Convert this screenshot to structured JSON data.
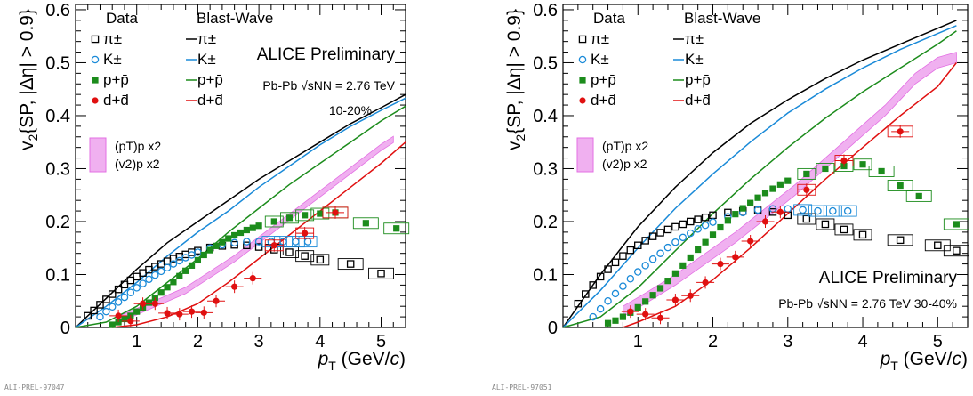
{
  "chart_data": [
    {
      "type": "scatter",
      "title": "",
      "xlabel": "p_T (GeV/c)",
      "ylabel": "v2{SP, |Δη| > 0.9}",
      "xlim": [
        0,
        5.4
      ],
      "ylim": [
        0,
        0.61
      ],
      "xticks": [
        1,
        2,
        3,
        4,
        5
      ],
      "yticks": [
        0,
        0.1,
        0.2,
        0.3,
        0.4,
        0.5,
        0.6
      ],
      "ytick_labels": [
        "0",
        "0.1",
        "0.2",
        "0.3",
        "0.4",
        "0.5",
        "0.6"
      ],
      "grid": false,
      "legend_header_data": "Data",
      "legend_header_model": "Blast-Wave",
      "annotations": [
        "ALICE Preliminary",
        "Pb-Pb √sNN = 2.76 TeV",
        "10-20%"
      ],
      "band_labels": [
        "(pT)p x2",
        "(v2)p x2"
      ],
      "footer": "ALI-PREL-97047",
      "band": {
        "name": "(pT)p x2, (v2)p x2",
        "color": "#e36fe3",
        "x": [
          0.7,
          1.0,
          1.4,
          1.8,
          2.2,
          2.6,
          3.0,
          3.4,
          3.8,
          4.2,
          4.6,
          5.0,
          5.2
        ],
        "y": [
          0.015,
          0.03,
          0.05,
          0.07,
          0.1,
          0.13,
          0.165,
          0.2,
          0.235,
          0.27,
          0.305,
          0.34,
          0.355
        ],
        "halfwidth": 0.006
      },
      "series": [
        {
          "name": "π±",
          "marker": "open-square",
          "color": "#000000",
          "x": [
            0.2,
            0.3,
            0.4,
            0.5,
            0.6,
            0.7,
            0.8,
            0.9,
            1.0,
            1.1,
            1.2,
            1.3,
            1.4,
            1.5,
            1.6,
            1.7,
            1.8,
            1.9,
            2.0,
            2.2,
            2.4,
            2.6,
            2.8,
            3.0,
            3.25,
            3.5,
            3.75,
            4.0,
            4.5,
            5.0
          ],
          "y": [
            0.022,
            0.032,
            0.043,
            0.053,
            0.063,
            0.072,
            0.081,
            0.089,
            0.096,
            0.103,
            0.109,
            0.115,
            0.12,
            0.125,
            0.13,
            0.134,
            0.138,
            0.142,
            0.145,
            0.151,
            0.154,
            0.156,
            0.155,
            0.152,
            0.147,
            0.142,
            0.135,
            0.128,
            0.12,
            0.102
          ]
        },
        {
          "name": "K±",
          "marker": "open-circle",
          "color": "#1a8ad8",
          "x": [
            0.4,
            0.5,
            0.6,
            0.7,
            0.8,
            0.9,
            1.0,
            1.1,
            1.2,
            1.3,
            1.4,
            1.5,
            1.6,
            1.7,
            1.8,
            1.9,
            2.0,
            2.2,
            2.4,
            2.6,
            2.8,
            3.0,
            3.2,
            3.4,
            3.6,
            3.8
          ],
          "y": [
            0.02,
            0.03,
            0.039,
            0.048,
            0.057,
            0.066,
            0.075,
            0.083,
            0.091,
            0.099,
            0.106,
            0.113,
            0.12,
            0.126,
            0.132,
            0.137,
            0.142,
            0.15,
            0.156,
            0.16,
            0.162,
            0.162,
            0.162,
            0.162,
            0.162,
            0.162
          ]
        },
        {
          "name": "p+p̄",
          "marker": "filled-square",
          "color": "#1c8c1c",
          "x": [
            0.6,
            0.7,
            0.8,
            0.9,
            1.0,
            1.1,
            1.2,
            1.3,
            1.4,
            1.5,
            1.6,
            1.7,
            1.8,
            1.9,
            2.0,
            2.1,
            2.2,
            2.3,
            2.4,
            2.5,
            2.6,
            2.7,
            2.8,
            2.9,
            3.0,
            3.25,
            3.5,
            3.75,
            4.0,
            4.25,
            4.75,
            5.25
          ],
          "y": [
            0.005,
            0.01,
            0.016,
            0.022,
            0.03,
            0.038,
            0.047,
            0.056,
            0.066,
            0.076,
            0.086,
            0.097,
            0.107,
            0.117,
            0.127,
            0.137,
            0.146,
            0.154,
            0.161,
            0.168,
            0.174,
            0.179,
            0.184,
            0.188,
            0.192,
            0.2,
            0.207,
            0.212,
            0.215,
            0.217,
            0.197,
            0.187
          ]
        },
        {
          "name": "d+d̄",
          "marker": "filled-circle",
          "color": "#e01010",
          "x": [
            0.7,
            0.9,
            1.1,
            1.3,
            1.5,
            1.7,
            1.9,
            2.1,
            2.3,
            2.6,
            2.9,
            3.25,
            3.75,
            4.25
          ],
          "y": [
            0.022,
            0.012,
            0.045,
            0.045,
            0.027,
            0.025,
            0.03,
            0.028,
            0.05,
            0.077,
            0.093,
            0.155,
            0.178,
            0.217
          ]
        }
      ],
      "model_curves": [
        {
          "name": "π±",
          "color": "#000000",
          "x": [
            0,
            0.5,
            1.0,
            1.5,
            2.0,
            2.5,
            3.0,
            3.5,
            4.0,
            4.5,
            5.0,
            5.4
          ],
          "y": [
            0.0,
            0.055,
            0.11,
            0.16,
            0.2,
            0.24,
            0.28,
            0.315,
            0.35,
            0.385,
            0.415,
            0.44
          ]
        },
        {
          "name": "K±",
          "color": "#1a8ad8",
          "x": [
            0,
            0.5,
            1.0,
            1.5,
            2.0,
            2.5,
            3.0,
            3.5,
            4.0,
            4.5,
            5.0,
            5.4
          ],
          "y": [
            0.0,
            0.04,
            0.085,
            0.135,
            0.18,
            0.22,
            0.265,
            0.305,
            0.345,
            0.38,
            0.41,
            0.433
          ]
        },
        {
          "name": "p+p̄",
          "color": "#1c8c1c",
          "x": [
            0,
            0.5,
            1.0,
            1.5,
            2.0,
            2.5,
            3.0,
            3.5,
            4.0,
            4.5,
            5.0,
            5.4
          ],
          "y": [
            0.0,
            0.01,
            0.04,
            0.085,
            0.13,
            0.18,
            0.225,
            0.27,
            0.31,
            0.35,
            0.39,
            0.418
          ]
        },
        {
          "name": "d+d̄",
          "color": "#e01010",
          "x": [
            0.6,
            1.0,
            1.5,
            2.0,
            2.5,
            3.0,
            3.5,
            4.0,
            4.5,
            5.0,
            5.4
          ],
          "y": [
            0.0,
            0.005,
            0.02,
            0.045,
            0.085,
            0.13,
            0.175,
            0.22,
            0.265,
            0.31,
            0.35
          ]
        }
      ]
    },
    {
      "type": "scatter",
      "title": "",
      "xlabel": "p_T (GeV/c)",
      "ylabel": "v2{SP, |Δη| > 0.9}",
      "xlim": [
        0,
        5.4
      ],
      "ylim": [
        0,
        0.61
      ],
      "xticks": [
        1,
        2,
        3,
        4,
        5
      ],
      "yticks": [
        0,
        0.1,
        0.2,
        0.3,
        0.4,
        0.5,
        0.6
      ],
      "ytick_labels": [
        "0",
        "0.1",
        "0.2",
        "0.3",
        "0.4",
        "0.5",
        "0.6"
      ],
      "grid": false,
      "legend_header_data": "Data",
      "legend_header_model": "Blast-Wave",
      "annotations": [
        "ALICE Preliminary",
        "Pb-Pb √sNN = 2.76 TeV 30-40%"
      ],
      "band_labels": [
        "(pT)p x2",
        "(v2)p x2"
      ],
      "footer": "ALI-PREL-97051",
      "band": {
        "name": "(pT)p x2, (v2)p x2",
        "color": "#e36fe3",
        "x": [
          0.8,
          1.1,
          1.5,
          1.9,
          2.3,
          2.7,
          3.1,
          3.5,
          3.9,
          4.3,
          4.7,
          5.0,
          5.25
        ],
        "y": [
          0.03,
          0.055,
          0.09,
          0.13,
          0.17,
          0.215,
          0.26,
          0.31,
          0.36,
          0.41,
          0.47,
          0.5,
          0.51
        ],
        "halfwidth": 0.01
      },
      "series": [
        {
          "name": "π±",
          "marker": "open-square",
          "color": "#000000",
          "x": [
            0.2,
            0.3,
            0.4,
            0.5,
            0.6,
            0.7,
            0.8,
            0.9,
            1.0,
            1.1,
            1.2,
            1.3,
            1.4,
            1.5,
            1.6,
            1.7,
            1.8,
            1.9,
            2.0,
            2.2,
            2.4,
            2.6,
            2.8,
            3.0,
            3.25,
            3.5,
            3.75,
            4.0,
            4.5,
            5.0,
            5.25
          ],
          "y": [
            0.045,
            0.063,
            0.08,
            0.096,
            0.11,
            0.123,
            0.135,
            0.146,
            0.155,
            0.164,
            0.172,
            0.179,
            0.185,
            0.19,
            0.195,
            0.2,
            0.204,
            0.208,
            0.212,
            0.217,
            0.22,
            0.221,
            0.218,
            0.212,
            0.205,
            0.195,
            0.185,
            0.175,
            0.165,
            0.155,
            0.145
          ]
        },
        {
          "name": "K±",
          "marker": "open-circle",
          "color": "#1a8ad8",
          "x": [
            0.4,
            0.5,
            0.6,
            0.7,
            0.8,
            0.9,
            1.0,
            1.1,
            1.2,
            1.3,
            1.4,
            1.5,
            1.6,
            1.7,
            1.8,
            1.9,
            2.0,
            2.2,
            2.4,
            2.6,
            2.8,
            3.0,
            3.2,
            3.4,
            3.6,
            3.8
          ],
          "y": [
            0.02,
            0.035,
            0.05,
            0.064,
            0.078,
            0.092,
            0.105,
            0.117,
            0.129,
            0.14,
            0.151,
            0.161,
            0.17,
            0.178,
            0.186,
            0.193,
            0.199,
            0.209,
            0.217,
            0.222,
            0.224,
            0.224,
            0.222,
            0.22,
            0.22,
            0.22
          ]
        },
        {
          "name": "p+p̄",
          "marker": "filled-square",
          "color": "#1c8c1c",
          "x": [
            0.6,
            0.7,
            0.8,
            0.9,
            1.0,
            1.1,
            1.2,
            1.3,
            1.4,
            1.5,
            1.6,
            1.7,
            1.8,
            1.9,
            2.0,
            2.1,
            2.2,
            2.3,
            2.4,
            2.5,
            2.6,
            2.7,
            2.8,
            2.9,
            3.0,
            3.25,
            3.5,
            3.75,
            4.0,
            4.25,
            4.5,
            4.75,
            5.25
          ],
          "y": [
            0.008,
            0.013,
            0.02,
            0.028,
            0.038,
            0.049,
            0.061,
            0.074,
            0.088,
            0.102,
            0.117,
            0.132,
            0.147,
            0.161,
            0.175,
            0.189,
            0.202,
            0.214,
            0.225,
            0.235,
            0.245,
            0.254,
            0.262,
            0.27,
            0.277,
            0.29,
            0.3,
            0.305,
            0.308,
            0.295,
            0.268,
            0.248,
            0.195
          ]
        },
        {
          "name": "d+d̄",
          "marker": "filled-circle",
          "color": "#e01010",
          "x": [
            0.9,
            1.1,
            1.3,
            1.5,
            1.7,
            1.9,
            2.1,
            2.3,
            2.5,
            2.7,
            2.9,
            3.25,
            3.75,
            4.5
          ],
          "y": [
            0.03,
            0.025,
            0.018,
            0.052,
            0.06,
            0.085,
            0.12,
            0.133,
            0.163,
            0.2,
            0.218,
            0.26,
            0.315,
            0.37
          ]
        }
      ],
      "model_curves": [
        {
          "name": "π±",
          "color": "#000000",
          "x": [
            0,
            0.5,
            1.0,
            1.5,
            2.0,
            2.5,
            3.0,
            3.5,
            4.0,
            4.5,
            5.0,
            5.25
          ],
          "y": [
            0.0,
            0.1,
            0.19,
            0.265,
            0.33,
            0.385,
            0.43,
            0.47,
            0.505,
            0.535,
            0.565,
            0.58
          ]
        },
        {
          "name": "K±",
          "color": "#1a8ad8",
          "x": [
            0,
            0.5,
            1.0,
            1.5,
            2.0,
            2.5,
            3.0,
            3.5,
            4.0,
            4.5,
            5.0,
            5.25
          ],
          "y": [
            0.0,
            0.07,
            0.15,
            0.225,
            0.29,
            0.35,
            0.405,
            0.45,
            0.49,
            0.525,
            0.555,
            0.57
          ]
        },
        {
          "name": "p+p̄",
          "color": "#1c8c1c",
          "x": [
            0,
            0.5,
            1.0,
            1.5,
            2.0,
            2.5,
            3.0,
            3.5,
            4.0,
            4.5,
            5.0,
            5.25
          ],
          "y": [
            0.0,
            0.02,
            0.075,
            0.145,
            0.215,
            0.28,
            0.34,
            0.395,
            0.445,
            0.49,
            0.535,
            0.56
          ]
        },
        {
          "name": "d+d̄",
          "color": "#e01010",
          "x": [
            0.8,
            1.0,
            1.5,
            2.0,
            2.5,
            3.0,
            3.5,
            4.0,
            4.5,
            5.0,
            5.25
          ],
          "y": [
            0.0,
            0.01,
            0.04,
            0.09,
            0.15,
            0.215,
            0.28,
            0.34,
            0.4,
            0.455,
            0.5
          ]
        }
      ]
    }
  ]
}
